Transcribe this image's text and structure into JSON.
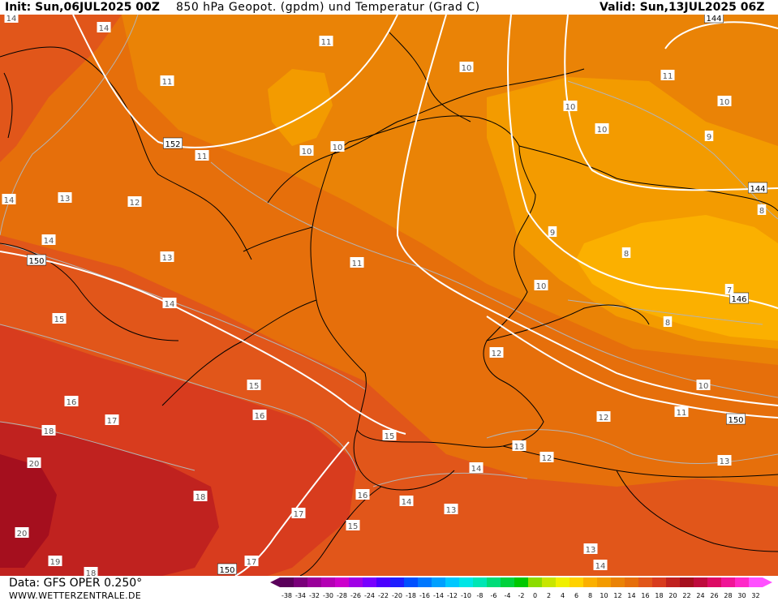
{
  "header": {
    "init": "Init: Sun,06JUL2025 00Z",
    "title": "850 hPa Geopot. (gpdm) und Temperatur (Grad C)",
    "valid": "Valid: Sun,13JUL2025 06Z"
  },
  "footer": {
    "data_source": "Data: GFS OPER 0.250°",
    "website": "WWW.WETTERZENTRALE.DE"
  },
  "colors": {
    "t20": "#a50f1e",
    "t18": "#c0221f",
    "t16": "#d83c1e",
    "t14": "#e1561a",
    "t12": "#e66f0b",
    "t10": "#ea8306",
    "t8": "#f39b00",
    "t6": "#fbb000",
    "geopotential_line": "#ffffff",
    "temperature_line": "#b4b4b4",
    "border": "#000000"
  },
  "color_scale": {
    "labels": [
      "-38",
      "-34",
      "-32",
      "-30",
      "-28",
      "-26",
      "-24",
      "-22",
      "-20",
      "-18",
      "-16",
      "-14",
      "-12",
      "-10",
      "-8",
      "-6",
      "-4",
      "-2",
      "0",
      "2",
      "4",
      "6",
      "8",
      "10",
      "12",
      "14",
      "16",
      "18",
      "20",
      "22",
      "24",
      "26",
      "28",
      "30",
      "32"
    ],
    "swatches": [
      "#5a005a",
      "#7a007a",
      "#9a009a",
      "#b400b4",
      "#cc00cc",
      "#a000e6",
      "#7800ff",
      "#4b00ff",
      "#1e1eff",
      "#0050ff",
      "#0078ff",
      "#00a0ff",
      "#00c8ff",
      "#00e6e6",
      "#00e6b4",
      "#00dc78",
      "#00d23c",
      "#00c800",
      "#8cdc00",
      "#c8e600",
      "#f0f000",
      "#ffd200",
      "#fbb000",
      "#f39b00",
      "#ea8306",
      "#e66f0b",
      "#e1561a",
      "#d83c1e",
      "#c0221f",
      "#a50f1e",
      "#be0a3c",
      "#dc0a64",
      "#f01496",
      "#ff28c8",
      "#ff50ff"
    ]
  },
  "geopotential_labels": [
    {
      "id": "gp-152",
      "text": "152"
    },
    {
      "id": "gp-150-w",
      "text": "150"
    },
    {
      "id": "gp-150-e",
      "text": "150"
    },
    {
      "id": "gp-150-s",
      "text": "150"
    },
    {
      "id": "gp-146",
      "text": "146"
    },
    {
      "id": "gp-144-e",
      "text": "144"
    },
    {
      "id": "gp-144-n",
      "text": "144"
    }
  ],
  "temperature_labels": [
    {
      "id": "t1",
      "text": "14"
    },
    {
      "id": "t2",
      "text": "14"
    },
    {
      "id": "t3",
      "text": "11"
    },
    {
      "id": "t4",
      "text": "11"
    },
    {
      "id": "t5",
      "text": "10"
    },
    {
      "id": "t6",
      "text": "11"
    },
    {
      "id": "t7",
      "text": "10"
    },
    {
      "id": "t8",
      "text": "10"
    },
    {
      "id": "t9",
      "text": "10"
    },
    {
      "id": "t10",
      "text": "10"
    },
    {
      "id": "t11",
      "text": "9"
    },
    {
      "id": "t12",
      "text": "10"
    },
    {
      "id": "t13",
      "text": "11"
    },
    {
      "id": "t14",
      "text": "14"
    },
    {
      "id": "t15",
      "text": "13"
    },
    {
      "id": "t16",
      "text": "12"
    },
    {
      "id": "t17",
      "text": "8"
    },
    {
      "id": "t18",
      "text": "14"
    },
    {
      "id": "t19",
      "text": "13"
    },
    {
      "id": "t20",
      "text": "11"
    },
    {
      "id": "t21",
      "text": "9"
    },
    {
      "id": "t22",
      "text": "8"
    },
    {
      "id": "t23",
      "text": "10"
    },
    {
      "id": "t24",
      "text": "7"
    },
    {
      "id": "t25",
      "text": "14"
    },
    {
      "id": "t26",
      "text": "15"
    },
    {
      "id": "t27",
      "text": "8"
    },
    {
      "id": "t28",
      "text": "12"
    },
    {
      "id": "t29",
      "text": "15"
    },
    {
      "id": "t30",
      "text": "10"
    },
    {
      "id": "t31",
      "text": "16"
    },
    {
      "id": "t32",
      "text": "17"
    },
    {
      "id": "t33",
      "text": "16"
    },
    {
      "id": "t34",
      "text": "11"
    },
    {
      "id": "t35",
      "text": "18"
    },
    {
      "id": "t36",
      "text": "12"
    },
    {
      "id": "t37",
      "text": "15"
    },
    {
      "id": "t38",
      "text": "13"
    },
    {
      "id": "t39",
      "text": "12"
    },
    {
      "id": "t40",
      "text": "20"
    },
    {
      "id": "t41",
      "text": "14"
    },
    {
      "id": "t42",
      "text": "13"
    },
    {
      "id": "t43",
      "text": "18"
    },
    {
      "id": "t44",
      "text": "16"
    },
    {
      "id": "t45",
      "text": "14"
    },
    {
      "id": "t46",
      "text": "17"
    },
    {
      "id": "t47",
      "text": "13"
    },
    {
      "id": "t48",
      "text": "15"
    },
    {
      "id": "t49",
      "text": "20"
    },
    {
      "id": "t50",
      "text": "19"
    },
    {
      "id": "t51",
      "text": "18"
    },
    {
      "id": "t52",
      "text": "17"
    },
    {
      "id": "t53",
      "text": "13"
    },
    {
      "id": "t54",
      "text": "14"
    }
  ]
}
